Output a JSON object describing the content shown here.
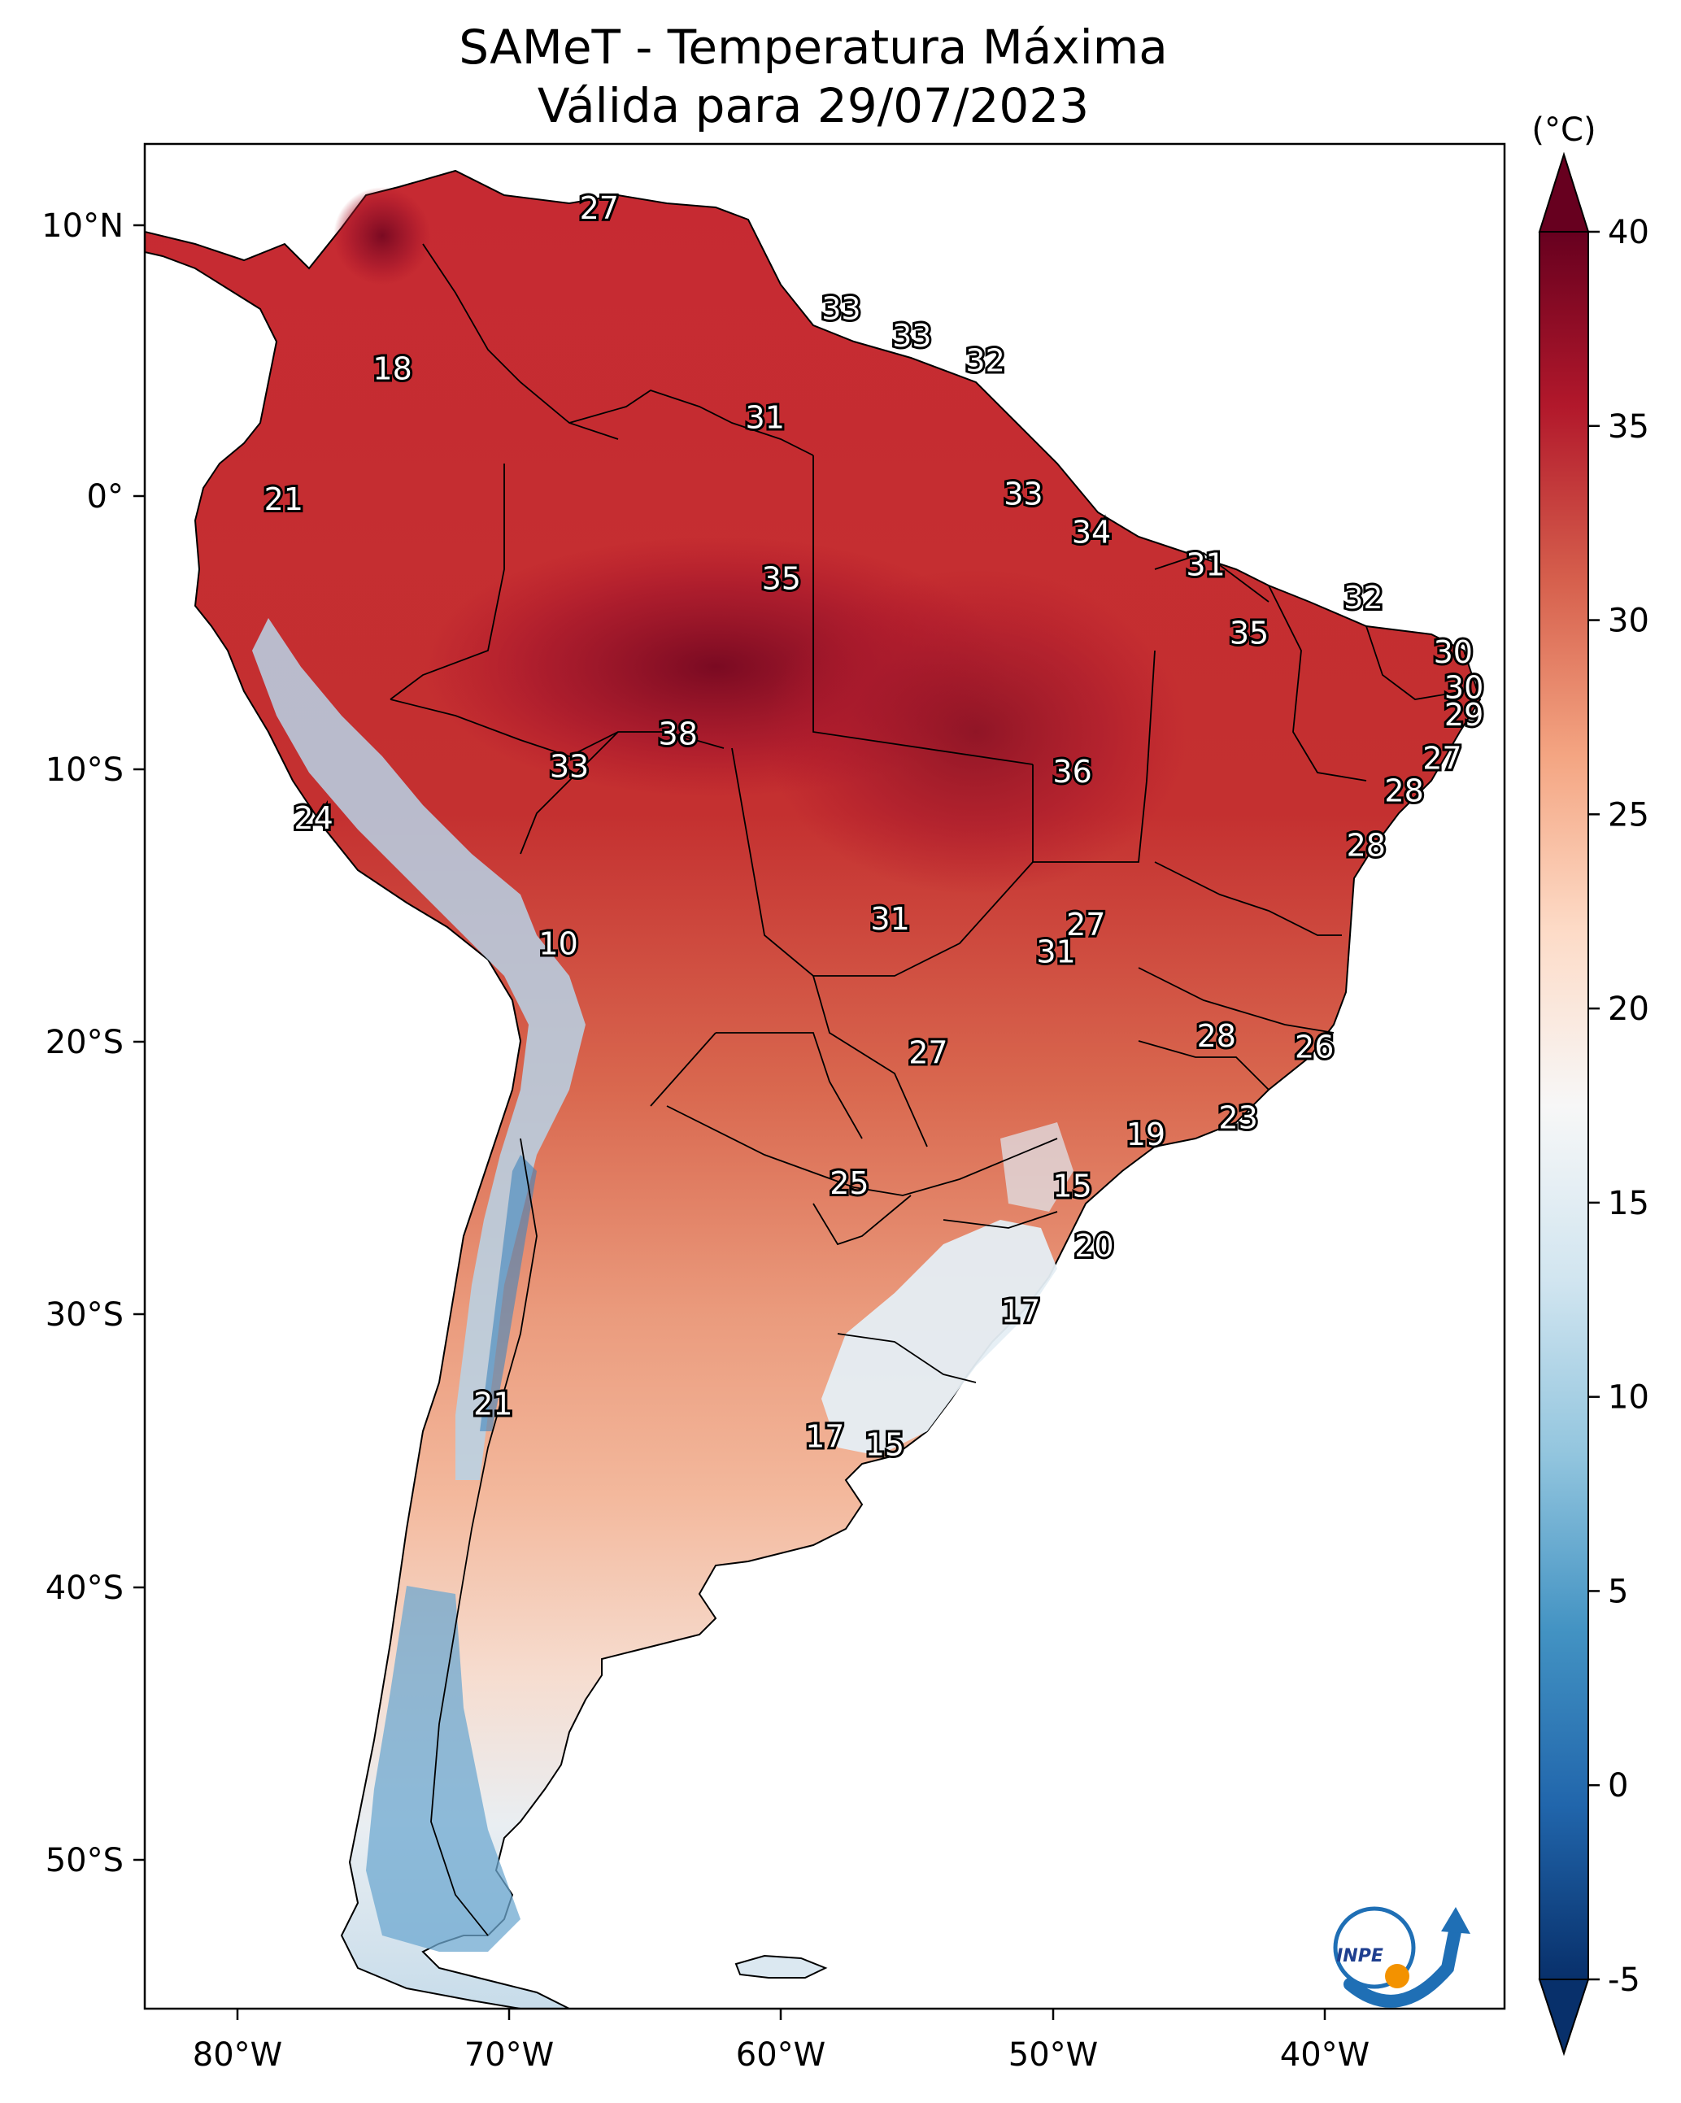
{
  "title_line1": "SAMeT - Temperatura Máxima",
  "title_line2": "Válida para 29/07/2023",
  "colorbar": {
    "unit": "(°C)",
    "ticks": [
      "-5",
      "0",
      "5",
      "10",
      "15",
      "20",
      "25",
      "30",
      "35",
      "40"
    ],
    "min": -5,
    "max": 40,
    "colors": [
      "#08306b",
      "#2166ac",
      "#4393c3",
      "#92c5de",
      "#d1e5f0",
      "#f7f7f7",
      "#fddbc7",
      "#f4a582",
      "#d6604d",
      "#b2182b",
      "#67001f"
    ]
  },
  "axes": {
    "lon_ticks": [
      "80°W",
      "70°W",
      "60°W",
      "50°W",
      "40°W"
    ],
    "lat_ticks": [
      "10°N",
      "0°",
      "10°S",
      "20°S",
      "30°S",
      "40°S",
      "50°S"
    ]
  },
  "logo": {
    "text": "INPE"
  },
  "map_labels": [
    {
      "value": "27",
      "lon": -66.7,
      "lat": 10.5
    },
    {
      "value": "18",
      "lon": -74.3,
      "lat": 4.6
    },
    {
      "value": "33",
      "lon": -57.8,
      "lat": 6.8
    },
    {
      "value": "33",
      "lon": -55.2,
      "lat": 5.8
    },
    {
      "value": "32",
      "lon": -52.5,
      "lat": 4.9
    },
    {
      "value": "31",
      "lon": -60.6,
      "lat": 2.8
    },
    {
      "value": "21",
      "lon": -78.3,
      "lat": -0.2
    },
    {
      "value": "33",
      "lon": -51.1,
      "lat": 0.0
    },
    {
      "value": "34",
      "lon": -48.6,
      "lat": -1.4
    },
    {
      "value": "35",
      "lon": -60.0,
      "lat": -3.1
    },
    {
      "value": "31",
      "lon": -44.4,
      "lat": -2.6
    },
    {
      "value": "32",
      "lon": -38.6,
      "lat": -3.8
    },
    {
      "value": "35",
      "lon": -42.8,
      "lat": -5.1
    },
    {
      "value": "30",
      "lon": -35.3,
      "lat": -5.8
    },
    {
      "value": "30",
      "lon": -34.9,
      "lat": -7.1
    },
    {
      "value": "29",
      "lon": -34.9,
      "lat": -8.1
    },
    {
      "value": "38",
      "lon": -63.8,
      "lat": -8.8
    },
    {
      "value": "33",
      "lon": -67.8,
      "lat": -10.0
    },
    {
      "value": "36",
      "lon": -49.3,
      "lat": -10.2
    },
    {
      "value": "27",
      "lon": -35.7,
      "lat": -9.7
    },
    {
      "value": "28",
      "lon": -37.1,
      "lat": -10.9
    },
    {
      "value": "24",
      "lon": -77.2,
      "lat": -11.9
    },
    {
      "value": "28",
      "lon": -38.5,
      "lat": -12.9
    },
    {
      "value": "31",
      "lon": -56.0,
      "lat": -15.6
    },
    {
      "value": "27",
      "lon": -48.8,
      "lat": -15.8
    },
    {
      "value": "31",
      "lon": -49.9,
      "lat": -16.8
    },
    {
      "value": "10",
      "lon": -68.2,
      "lat": -16.5
    },
    {
      "value": "28",
      "lon": -44.0,
      "lat": -19.9
    },
    {
      "value": "26",
      "lon": -40.4,
      "lat": -20.3
    },
    {
      "value": "27",
      "lon": -54.6,
      "lat": -20.5
    },
    {
      "value": "23",
      "lon": -43.2,
      "lat": -22.9
    },
    {
      "value": "19",
      "lon": -46.6,
      "lat": -23.5
    },
    {
      "value": "25",
      "lon": -57.5,
      "lat": -25.3
    },
    {
      "value": "15",
      "lon": -49.3,
      "lat": -25.4
    },
    {
      "value": "20",
      "lon": -48.5,
      "lat": -27.6
    },
    {
      "value": "17",
      "lon": -51.2,
      "lat": -30.0
    },
    {
      "value": "21",
      "lon": -70.6,
      "lat": -33.4
    },
    {
      "value": "17",
      "lon": -58.4,
      "lat": -34.6
    },
    {
      "value": "15",
      "lon": -56.2,
      "lat": -34.9
    }
  ]
}
